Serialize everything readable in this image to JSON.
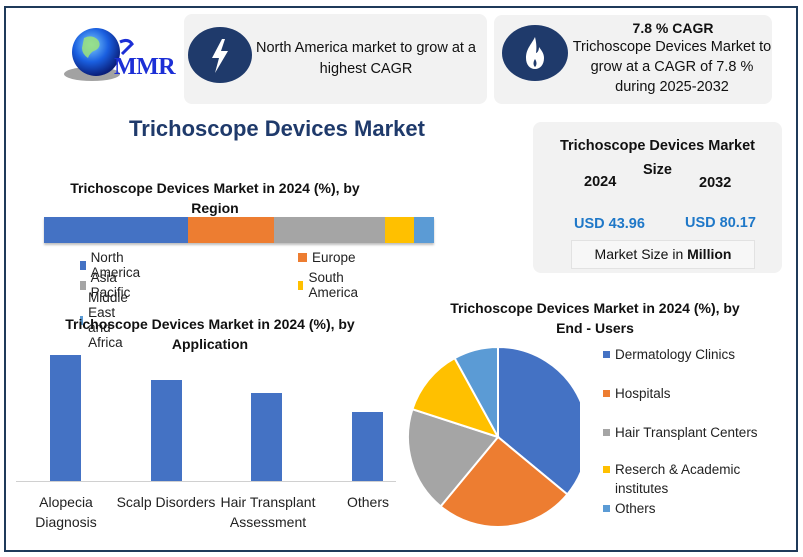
{
  "logo": {
    "text": "MMR",
    "icon": "globe-icon"
  },
  "highlight_cards": [
    {
      "icon": "lightning-bolt-icon",
      "text": "North America market to grow at a highest CAGR"
    },
    {
      "icon": "flame-icon",
      "title": "7.8 % CAGR",
      "text": "Trichoscope Devices Market to grow at a CAGR of 7.8 % during 2025-2032"
    }
  ],
  "main_title": "Trichoscope Devices Market",
  "market_size": {
    "title": "Trichoscope Devices Market Size",
    "year_start": "2024",
    "year_end": "2032",
    "value_start": "USD 43.96",
    "value_end": "USD 80.17",
    "unit_prefix": "Market Size in ",
    "unit_bold": "Million"
  },
  "colors": {
    "blue": "#4472c4",
    "orange": "#ed7d31",
    "gray": "#a5a5a5",
    "yellow": "#ffc000",
    "light_blue": "#5b9bd5",
    "navy": "#1f3a6b",
    "usd_blue": "#1f78c8"
  },
  "chart_data": [
    {
      "type": "bar",
      "stacked": true,
      "orientation": "horizontal",
      "title": "Trichoscope Devices Market in 2024 (%), by Region",
      "categories": [
        "North America",
        "Europe",
        "Asia Pacific",
        "South America",
        "Middle East and Africa"
      ],
      "values": [
        37,
        22,
        28.5,
        7.5,
        5
      ],
      "legend_position": "bottom",
      "xlabel": "",
      "ylabel": "",
      "grid": false
    },
    {
      "type": "bar",
      "title": "Trichoscope Devices Market in 2024 (%), by Application",
      "categories": [
        "Alopecia Diagnosis",
        "Scalp Disorders",
        "Hair Transplant Assessment",
        "Others"
      ],
      "values": [
        33,
        26.5,
        23,
        18
      ],
      "xlabel": "",
      "ylabel": "",
      "grid": false
    },
    {
      "type": "pie",
      "title": "Trichoscope Devices Market in 2024 (%), by End - Users",
      "categories": [
        "Dermatology Clinics",
        "Hospitals",
        "Hair Transplant Centers",
        "Reserch & Academic institutes",
        "Others"
      ],
      "values": [
        36,
        25,
        19,
        12,
        8
      ],
      "legend_position": "right"
    }
  ],
  "region_chart": {
    "title": "Trichoscope Devices Market in 2024 (%), by Region",
    "legend": [
      "North America",
      "Europe",
      "Asia Pacific",
      "South America",
      "Middle East and Africa"
    ]
  },
  "application_chart": {
    "title": "Trichoscope Devices Market in 2024 (%), by Application",
    "labels": [
      "Alopecia\nDiagnosis",
      "Scalp Disorders",
      "Hair Transplant\nAssessment",
      "Others"
    ]
  },
  "enduser_chart": {
    "title": "Trichoscope Devices Market in 2024 (%), by End - Users",
    "legend": [
      "Dermatology Clinics",
      "Hospitals",
      "Hair Transplant Centers",
      "Reserch & Academic institutes",
      "Others"
    ]
  }
}
